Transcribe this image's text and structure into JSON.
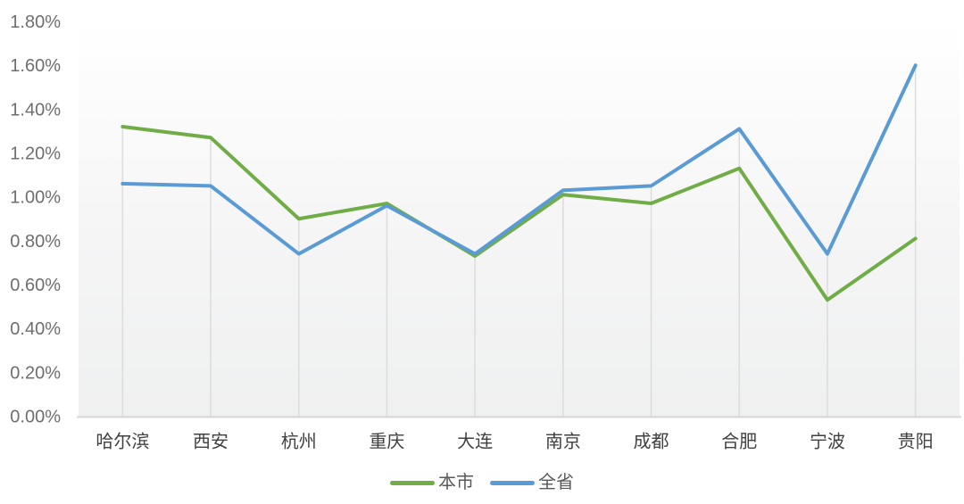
{
  "chart_data": {
    "type": "line",
    "title": "",
    "xlabel": "",
    "ylabel": "",
    "categories": [
      "哈尔滨",
      "西安",
      "杭州",
      "重庆",
      "大连",
      "南京",
      "成都",
      "合肥",
      "宁波",
      "贵阳"
    ],
    "series": [
      {
        "name": "本市",
        "color": "#70AD47",
        "values": [
          1.32,
          1.27,
          0.9,
          0.97,
          0.73,
          1.01,
          0.97,
          1.13,
          0.53,
          0.81
        ]
      },
      {
        "name": "全省",
        "color": "#5B9BD5",
        "values": [
          1.06,
          1.05,
          0.74,
          0.96,
          0.74,
          1.03,
          1.05,
          1.31,
          0.74,
          1.6
        ]
      }
    ],
    "ylim": [
      0,
      1.8
    ],
    "y_tick_step": 0.2,
    "y_tick_labels": [
      "0.00%",
      "0.20%",
      "0.40%",
      "0.60%",
      "0.80%",
      "1.00%",
      "1.20%",
      "1.40%",
      "1.60%",
      "1.80%"
    ],
    "grid": "vertical-drop-lines",
    "legend_position": "bottom"
  },
  "colors": {
    "axis_tick_label": "#6e6e6e",
    "category_label": "#404040",
    "axis_line": "#d6d6d6",
    "drop_line": "#dcdcdc",
    "plot_bg_top": "#ffffff",
    "plot_bg_mid": "#f5f5f6",
    "plot_bg_bottom": "#eff0f0",
    "legend_text": "#595959"
  }
}
